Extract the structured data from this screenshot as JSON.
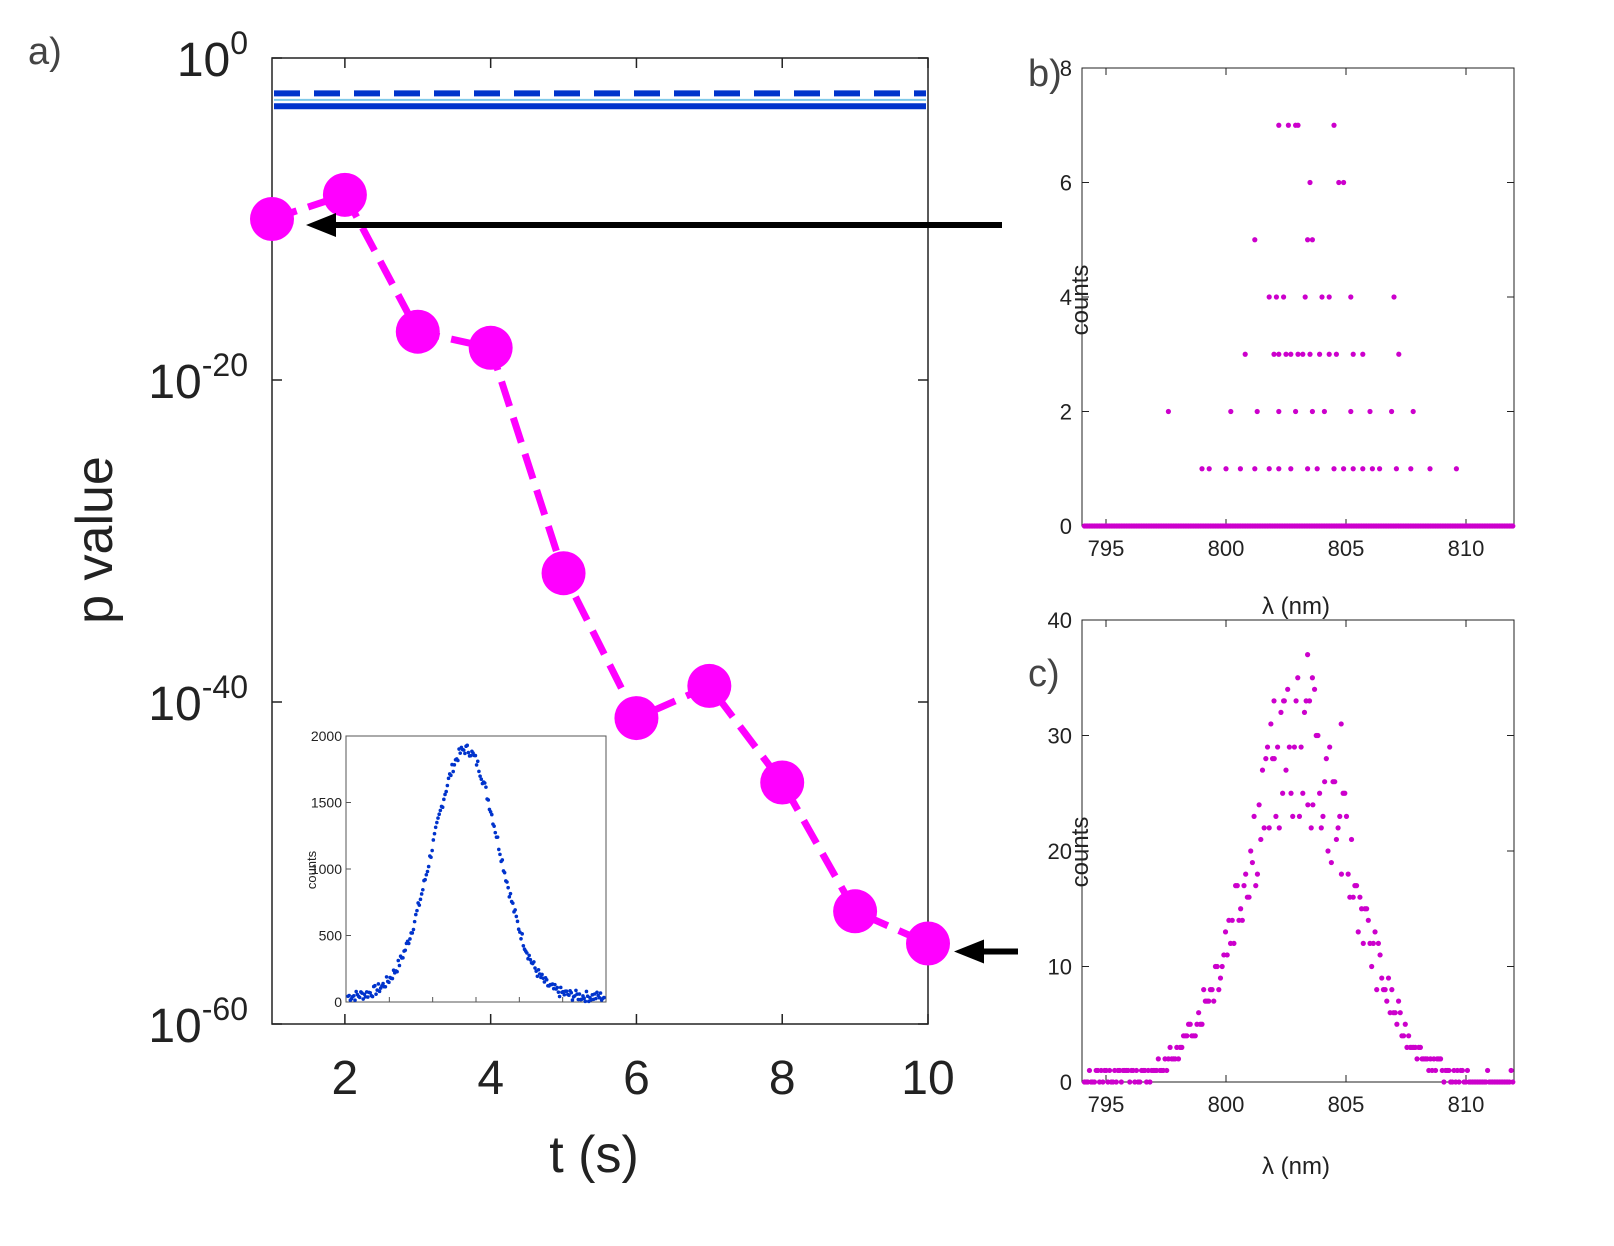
{
  "panel_labels": {
    "a": "a)",
    "b": "b)",
    "c": "c)"
  },
  "chart_data": [
    {
      "id": "a",
      "type": "line",
      "xlabel": "t (s)",
      "ylabel": "p value",
      "yscale": "log",
      "xlim": [
        1,
        10
      ],
      "ylim_exponent": [
        -60,
        0
      ],
      "x_ticks": [
        "2",
        "4",
        "6",
        "8",
        "10"
      ],
      "y_ticks": [
        {
          "base": "10",
          "exp": "0",
          "value": 0
        },
        {
          "base": "10",
          "exp": "-20",
          "value": -20
        },
        {
          "base": "10",
          "exp": "-40",
          "value": -40
        },
        {
          "base": "10",
          "exp": "-60",
          "value": -60
        }
      ],
      "series": [
        {
          "name": "p value",
          "color": "#ff00ff",
          "style": "dashed-with-markers",
          "x": [
            1,
            2,
            3,
            4,
            5,
            6,
            7,
            8,
            9,
            10
          ],
          "log10_y": [
            -10,
            -8.5,
            -17,
            -18,
            -32,
            -41,
            -39,
            -45,
            -53,
            -55
          ]
        }
      ],
      "reference_lines": [
        {
          "name": "dashed threshold",
          "color": "#0033cc",
          "log10_y": -2.2,
          "style": "dashed"
        },
        {
          "name": "light threshold",
          "color": "#7ec8e8",
          "log10_y": -2.6,
          "style": "solid"
        },
        {
          "name": "solid threshold",
          "color": "#0033cc",
          "log10_y": -3.0,
          "style": "solid"
        }
      ],
      "annotations": [
        {
          "name": "arrow-to-b",
          "points_to_x": 1,
          "from_panel": "b"
        },
        {
          "name": "arrow-to-c",
          "points_to_x": 10,
          "from_panel": "c"
        }
      ]
    },
    {
      "id": "inset",
      "type": "scatter",
      "ylabel": "counts",
      "ylim": [
        0,
        2000
      ],
      "y_ticks": [
        "0",
        "500",
        "1000",
        "1500",
        "2000"
      ],
      "color": "#0033cc",
      "shape": "gaussian",
      "peak_x_fraction": 0.46,
      "peak_value": 1900,
      "baseline": 40
    },
    {
      "id": "b",
      "type": "scatter",
      "xlabel": "λ (nm)",
      "ylabel": "counts",
      "xlim": [
        794,
        812
      ],
      "ylim": [
        0,
        8
      ],
      "x_ticks": [
        "795",
        "800",
        "805",
        "810"
      ],
      "y_ticks": [
        "0",
        "2",
        "4",
        "6",
        "8"
      ],
      "color": "#cc00cc",
      "points": [
        [
          802.2,
          7
        ],
        [
          802.6,
          7
        ],
        [
          802.9,
          7
        ],
        [
          803.0,
          7
        ],
        [
          804.5,
          7
        ],
        [
          803.5,
          6
        ],
        [
          804.7,
          6
        ],
        [
          804.9,
          6
        ],
        [
          801.2,
          5
        ],
        [
          803.4,
          5
        ],
        [
          803.6,
          5
        ],
        [
          801.8,
          4
        ],
        [
          802.1,
          4
        ],
        [
          802.4,
          4
        ],
        [
          803.3,
          4
        ],
        [
          804.0,
          4
        ],
        [
          804.3,
          4
        ],
        [
          805.2,
          4
        ],
        [
          807.0,
          4
        ],
        [
          800.8,
          3
        ],
        [
          802.0,
          3
        ],
        [
          802.2,
          3
        ],
        [
          802.5,
          3
        ],
        [
          802.7,
          3
        ],
        [
          803.0,
          3
        ],
        [
          803.2,
          3
        ],
        [
          803.5,
          3
        ],
        [
          803.9,
          3
        ],
        [
          804.3,
          3
        ],
        [
          804.6,
          3
        ],
        [
          805.3,
          3
        ],
        [
          805.7,
          3
        ],
        [
          807.2,
          3
        ],
        [
          797.6,
          2
        ],
        [
          800.2,
          2
        ],
        [
          801.3,
          2
        ],
        [
          802.2,
          2
        ],
        [
          802.9,
          2
        ],
        [
          803.6,
          2
        ],
        [
          804.1,
          2
        ],
        [
          805.2,
          2
        ],
        [
          806.0,
          2
        ],
        [
          806.9,
          2
        ],
        [
          807.8,
          2
        ],
        [
          799.0,
          1
        ],
        [
          799.3,
          1
        ],
        [
          800.0,
          1
        ],
        [
          800.6,
          1
        ],
        [
          801.2,
          1
        ],
        [
          801.8,
          1
        ],
        [
          802.2,
          1
        ],
        [
          802.7,
          1
        ],
        [
          803.4,
          1
        ],
        [
          803.8,
          1
        ],
        [
          804.5,
          1
        ],
        [
          804.9,
          1
        ],
        [
          805.3,
          1
        ],
        [
          805.7,
          1
        ],
        [
          806.1,
          1
        ],
        [
          806.4,
          1
        ],
        [
          807.1,
          1
        ],
        [
          807.7,
          1
        ],
        [
          808.5,
          1
        ],
        [
          809.6,
          1
        ]
      ]
    },
    {
      "id": "c",
      "type": "scatter",
      "xlabel": "λ (nm)",
      "ylabel": "counts",
      "xlim": [
        794,
        812
      ],
      "ylim": [
        0,
        40
      ],
      "x_ticks": [
        "795",
        "800",
        "805",
        "810"
      ],
      "y_ticks": [
        "0",
        "10",
        "20",
        "30",
        "40"
      ],
      "color": "#cc00cc",
      "shape": "noisy-peak",
      "peak_center": 803,
      "peak_max": 37,
      "peak_sigma": 2.3
    }
  ]
}
